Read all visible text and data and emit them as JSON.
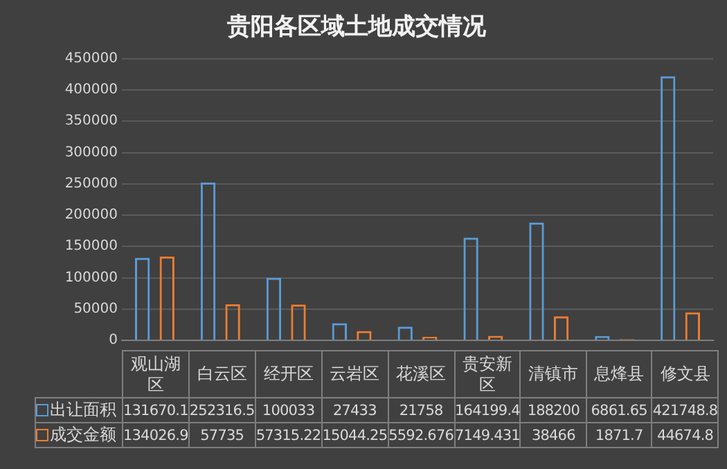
{
  "chart_data": {
    "type": "bar",
    "title": "贵阳各区域土地成交情况",
    "categories": [
      "观山湖区",
      "白云区",
      "经开区",
      "云岩区",
      "花溪区",
      "贵安新区",
      "清镇市",
      "息烽县",
      "修文县"
    ],
    "series": [
      {
        "name": "出让面积",
        "color": "#5b9bd5",
        "values": [
          131670.1,
          252316.5,
          100033,
          27433,
          21758,
          164199.4,
          188200,
          6861.65,
          421748.8
        ]
      },
      {
        "name": "成交金额",
        "color": "#ed7d31",
        "values": [
          134026.9,
          57735,
          57315.22,
          15044.25,
          5592.676,
          7149.431,
          38466,
          1871.7,
          44674.8
        ]
      }
    ],
    "ylim": [
      0,
      450000
    ],
    "yticks": [
      0,
      50000,
      100000,
      150000,
      200000,
      250000,
      300000,
      350000,
      400000,
      450000
    ],
    "grid": "y",
    "legend": "bottom",
    "data_labels": true
  }
}
